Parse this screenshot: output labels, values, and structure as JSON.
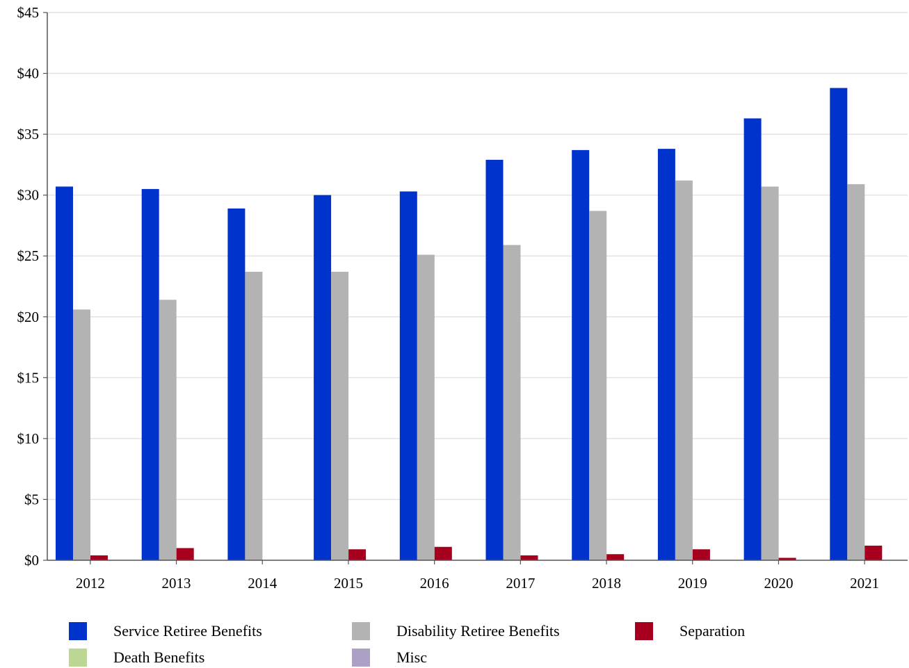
{
  "chart_data": {
    "type": "bar",
    "categories": [
      "2012",
      "2013",
      "2014",
      "2015",
      "2016",
      "2017",
      "2018",
      "2019",
      "2020",
      "2021"
    ],
    "series": [
      {
        "name": "Service Retiree Benefits",
        "color": "#0033cc",
        "values": [
          30.7,
          30.5,
          28.9,
          30.0,
          30.3,
          32.9,
          33.7,
          33.8,
          36.3,
          38.8
        ]
      },
      {
        "name": "Disability Retiree Benefits",
        "color": "#b3b3b3",
        "values": [
          20.6,
          21.4,
          23.7,
          23.7,
          25.1,
          25.9,
          28.7,
          31.2,
          30.7,
          30.9
        ]
      },
      {
        "name": "Separation",
        "color": "#a6001e",
        "values": [
          0.4,
          1.0,
          0.0,
          0.9,
          1.1,
          0.4,
          0.5,
          0.9,
          0.2,
          1.2
        ]
      },
      {
        "name": "Death Benefits",
        "color": "#bcd694",
        "values": [
          0,
          0,
          0,
          0,
          0,
          0,
          0,
          0,
          0,
          0
        ]
      },
      {
        "name": "Misc",
        "color": "#aca1c4",
        "values": [
          0,
          0,
          0,
          0,
          0,
          0,
          0,
          0,
          0,
          0
        ]
      }
    ],
    "y_ticks": [
      "$0",
      "$5",
      "$10",
      "$15",
      "$20",
      "$25",
      "$30",
      "$35",
      "$40",
      "$45"
    ],
    "ylim": [
      0,
      45
    ],
    "grid": true,
    "legend_position": "bottom"
  }
}
